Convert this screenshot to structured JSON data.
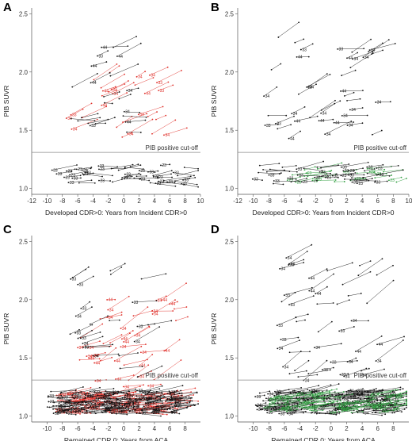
{
  "colors": {
    "black": "#111111",
    "red": "#e0302a",
    "green": "#2e9e3e",
    "cutoff": "#8a8a8a"
  },
  "chart_data": [
    {
      "type": "scatter",
      "panel": "A",
      "xlabel": "Developed CDR>0: Years from Incident CDR>0",
      "ylabel": "PIB SUVR",
      "xlim": [
        -12,
        10
      ],
      "ylim": [
        0.95,
        2.55
      ],
      "xticks": [
        -12,
        -10,
        -8,
        -6,
        -4,
        -2,
        0,
        2,
        4,
        6,
        8,
        10
      ],
      "yticks": [
        1.0,
        1.5,
        2.0,
        2.5
      ],
      "cutoff": {
        "y": 1.31,
        "label": "PIB positive cut-off"
      },
      "series": [
        {
          "color": "red",
          "seed": 11,
          "count": 28,
          "xrange": [
            -8,
            5.5
          ],
          "yrange": [
            1.42,
            2.0
          ],
          "slope": [
            0.02,
            0.05
          ],
          "labels": [
            "33",
            "34",
            "44"
          ]
        },
        {
          "color": "black",
          "seed": 12,
          "count": 22,
          "xrange": [
            -7,
            3
          ],
          "yrange": [
            1.4,
            2.3
          ],
          "slope": [
            -0.01,
            0.04
          ],
          "labels": [
            "33",
            "34",
            "44"
          ]
        },
        {
          "color": "black",
          "seed": 13,
          "count": 45,
          "xrange": [
            -10.5,
            8
          ],
          "yrange": [
            1.04,
            1.2
          ],
          "slope": [
            -0.01,
            0.02
          ],
          "labels": [
            "33",
            "23"
          ]
        }
      ]
    },
    {
      "type": "scatter",
      "panel": "B",
      "xlabel": "Developed CDR>0: Years from Incident CDR>0",
      "ylabel": "PIB SUVR",
      "xlim": [
        -12,
        10
      ],
      "ylim": [
        0.95,
        2.55
      ],
      "xticks": [
        -12,
        -10,
        -8,
        -6,
        -4,
        -2,
        0,
        2,
        4,
        6,
        8,
        10
      ],
      "yticks": [
        1.0,
        1.5,
        2.0,
        2.5
      ],
      "cutoff": {
        "y": 1.31,
        "label": "PIB positive cut-off"
      },
      "series": [
        {
          "color": "black",
          "seed": 21,
          "count": 40,
          "xrange": [
            -9,
            6
          ],
          "yrange": [
            1.42,
            2.3
          ],
          "slope": [
            0.0,
            0.05
          ],
          "labels": [
            "33",
            "34",
            "44"
          ]
        },
        {
          "color": "green",
          "seed": 22,
          "count": 22,
          "xrange": [
            -6,
            8.5
          ],
          "yrange": [
            1.05,
            1.17
          ],
          "slope": [
            0.0,
            0.02
          ],
          "labels": [
            "23"
          ]
        },
        {
          "color": "black",
          "seed": 23,
          "count": 40,
          "xrange": [
            -10.5,
            7
          ],
          "yrange": [
            1.04,
            1.2
          ],
          "slope": [
            -0.01,
            0.02
          ],
          "labels": [
            "33",
            "23"
          ]
        }
      ]
    },
    {
      "type": "scatter",
      "panel": "C",
      "xlabel": "Remained CDR 0: Years from ACA",
      "ylabel": "PIB SUVR",
      "xlim": [
        -12,
        10
      ],
      "ylim": [
        0.95,
        2.55
      ],
      "xticks": [
        -10,
        -8,
        -6,
        -4,
        -2,
        0,
        2,
        4,
        6,
        8
      ],
      "yticks": [
        1.0,
        1.5,
        2.0,
        2.5
      ],
      "cutoff": {
        "y": 1.31,
        "label": "PIB positive cut-off"
      },
      "series": [
        {
          "color": "red",
          "seed": 31,
          "count": 120,
          "xrange": [
            -9,
            7
          ],
          "yrange": [
            1.03,
            1.2
          ],
          "slope": [
            -0.01,
            0.02
          ],
          "labels": [
            "33",
            "34"
          ]
        },
        {
          "color": "red",
          "seed": 32,
          "count": 40,
          "xrange": [
            -6,
            7
          ],
          "yrange": [
            1.25,
            2.0
          ],
          "slope": [
            0.0,
            0.06
          ],
          "labels": [
            "34",
            "44"
          ]
        },
        {
          "color": "black",
          "seed": 33,
          "count": 170,
          "xrange": [
            -10,
            7
          ],
          "yrange": [
            1.02,
            1.22
          ],
          "slope": [
            -0.01,
            0.02
          ],
          "labels": [
            "33",
            "23"
          ]
        },
        {
          "color": "black",
          "seed": 34,
          "count": 25,
          "xrange": [
            -7,
            4
          ],
          "yrange": [
            1.3,
            2.35
          ],
          "slope": [
            0.0,
            0.05
          ],
          "labels": [
            "33",
            "34"
          ]
        }
      ]
    },
    {
      "type": "scatter",
      "panel": "D",
      "xlabel": "Remained CDR 0: Years from ACA",
      "ylabel": "PIB SUVR",
      "xlim": [
        -12,
        10
      ],
      "ylim": [
        0.95,
        2.55
      ],
      "xticks": [
        -10,
        -8,
        -6,
        -4,
        -2,
        0,
        2,
        4,
        6,
        8
      ],
      "yticks": [
        1.0,
        1.5,
        2.0,
        2.5
      ],
      "cutoff": {
        "y": 1.31,
        "label": "PIB positive cut-off"
      },
      "series": [
        {
          "color": "black",
          "seed": 41,
          "count": 190,
          "xrange": [
            -10,
            8
          ],
          "yrange": [
            1.02,
            1.22
          ],
          "slope": [
            -0.01,
            0.02
          ],
          "labels": [
            "33",
            "34"
          ]
        },
        {
          "color": "green",
          "seed": 42,
          "count": 90,
          "xrange": [
            -9,
            8.5
          ],
          "yrange": [
            1.03,
            1.2
          ],
          "slope": [
            0.0,
            0.02
          ],
          "labels": [
            "23",
            "24"
          ]
        },
        {
          "color": "black",
          "seed": 43,
          "count": 45,
          "xrange": [
            -7,
            6
          ],
          "yrange": [
            1.3,
            2.4
          ],
          "slope": [
            0.0,
            0.06
          ],
          "labels": [
            "34",
            "44",
            "33"
          ]
        }
      ]
    }
  ]
}
